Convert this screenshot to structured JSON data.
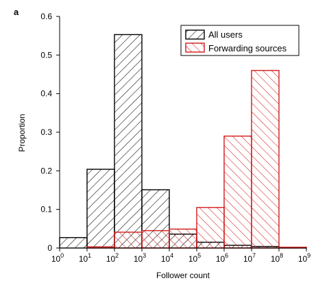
{
  "chart_data": {
    "type": "bar",
    "panel_label": "a",
    "xlabel": "Follower count",
    "ylabel": "Proportion",
    "x_scale": "log10",
    "xlim_exponent": [
      0,
      9
    ],
    "ylim": [
      0,
      0.6
    ],
    "x_ticks": [
      {
        "base": "10",
        "exp": "0"
      },
      {
        "base": "10",
        "exp": "1"
      },
      {
        "base": "10",
        "exp": "2"
      },
      {
        "base": "10",
        "exp": "3"
      },
      {
        "base": "10",
        "exp": "4"
      },
      {
        "base": "10",
        "exp": "5"
      },
      {
        "base": "10",
        "exp": "6"
      },
      {
        "base": "10",
        "exp": "7"
      },
      {
        "base": "10",
        "exp": "8"
      },
      {
        "base": "10",
        "exp": "9"
      }
    ],
    "y_ticks": [
      "0",
      "0.1",
      "0.2",
      "0.3",
      "0.4",
      "0.5",
      "0.6"
    ],
    "bin_edges_exponent": [
      0,
      1,
      2,
      3,
      4,
      5,
      6,
      7,
      8,
      9
    ],
    "legend_position": "top-right",
    "series": [
      {
        "name": "All users",
        "color": "#000000",
        "hatch": "backslash",
        "values": [
          0.027,
          0.204,
          0.553,
          0.151,
          0.036,
          0.015,
          0.007,
          0.004,
          0.001
        ]
      },
      {
        "name": "Forwarding sources",
        "color": "#d11a1a",
        "hatch": "forward-slash",
        "values": [
          0.0,
          0.003,
          0.041,
          0.045,
          0.049,
          0.105,
          0.29,
          0.46,
          0.002
        ]
      }
    ]
  }
}
